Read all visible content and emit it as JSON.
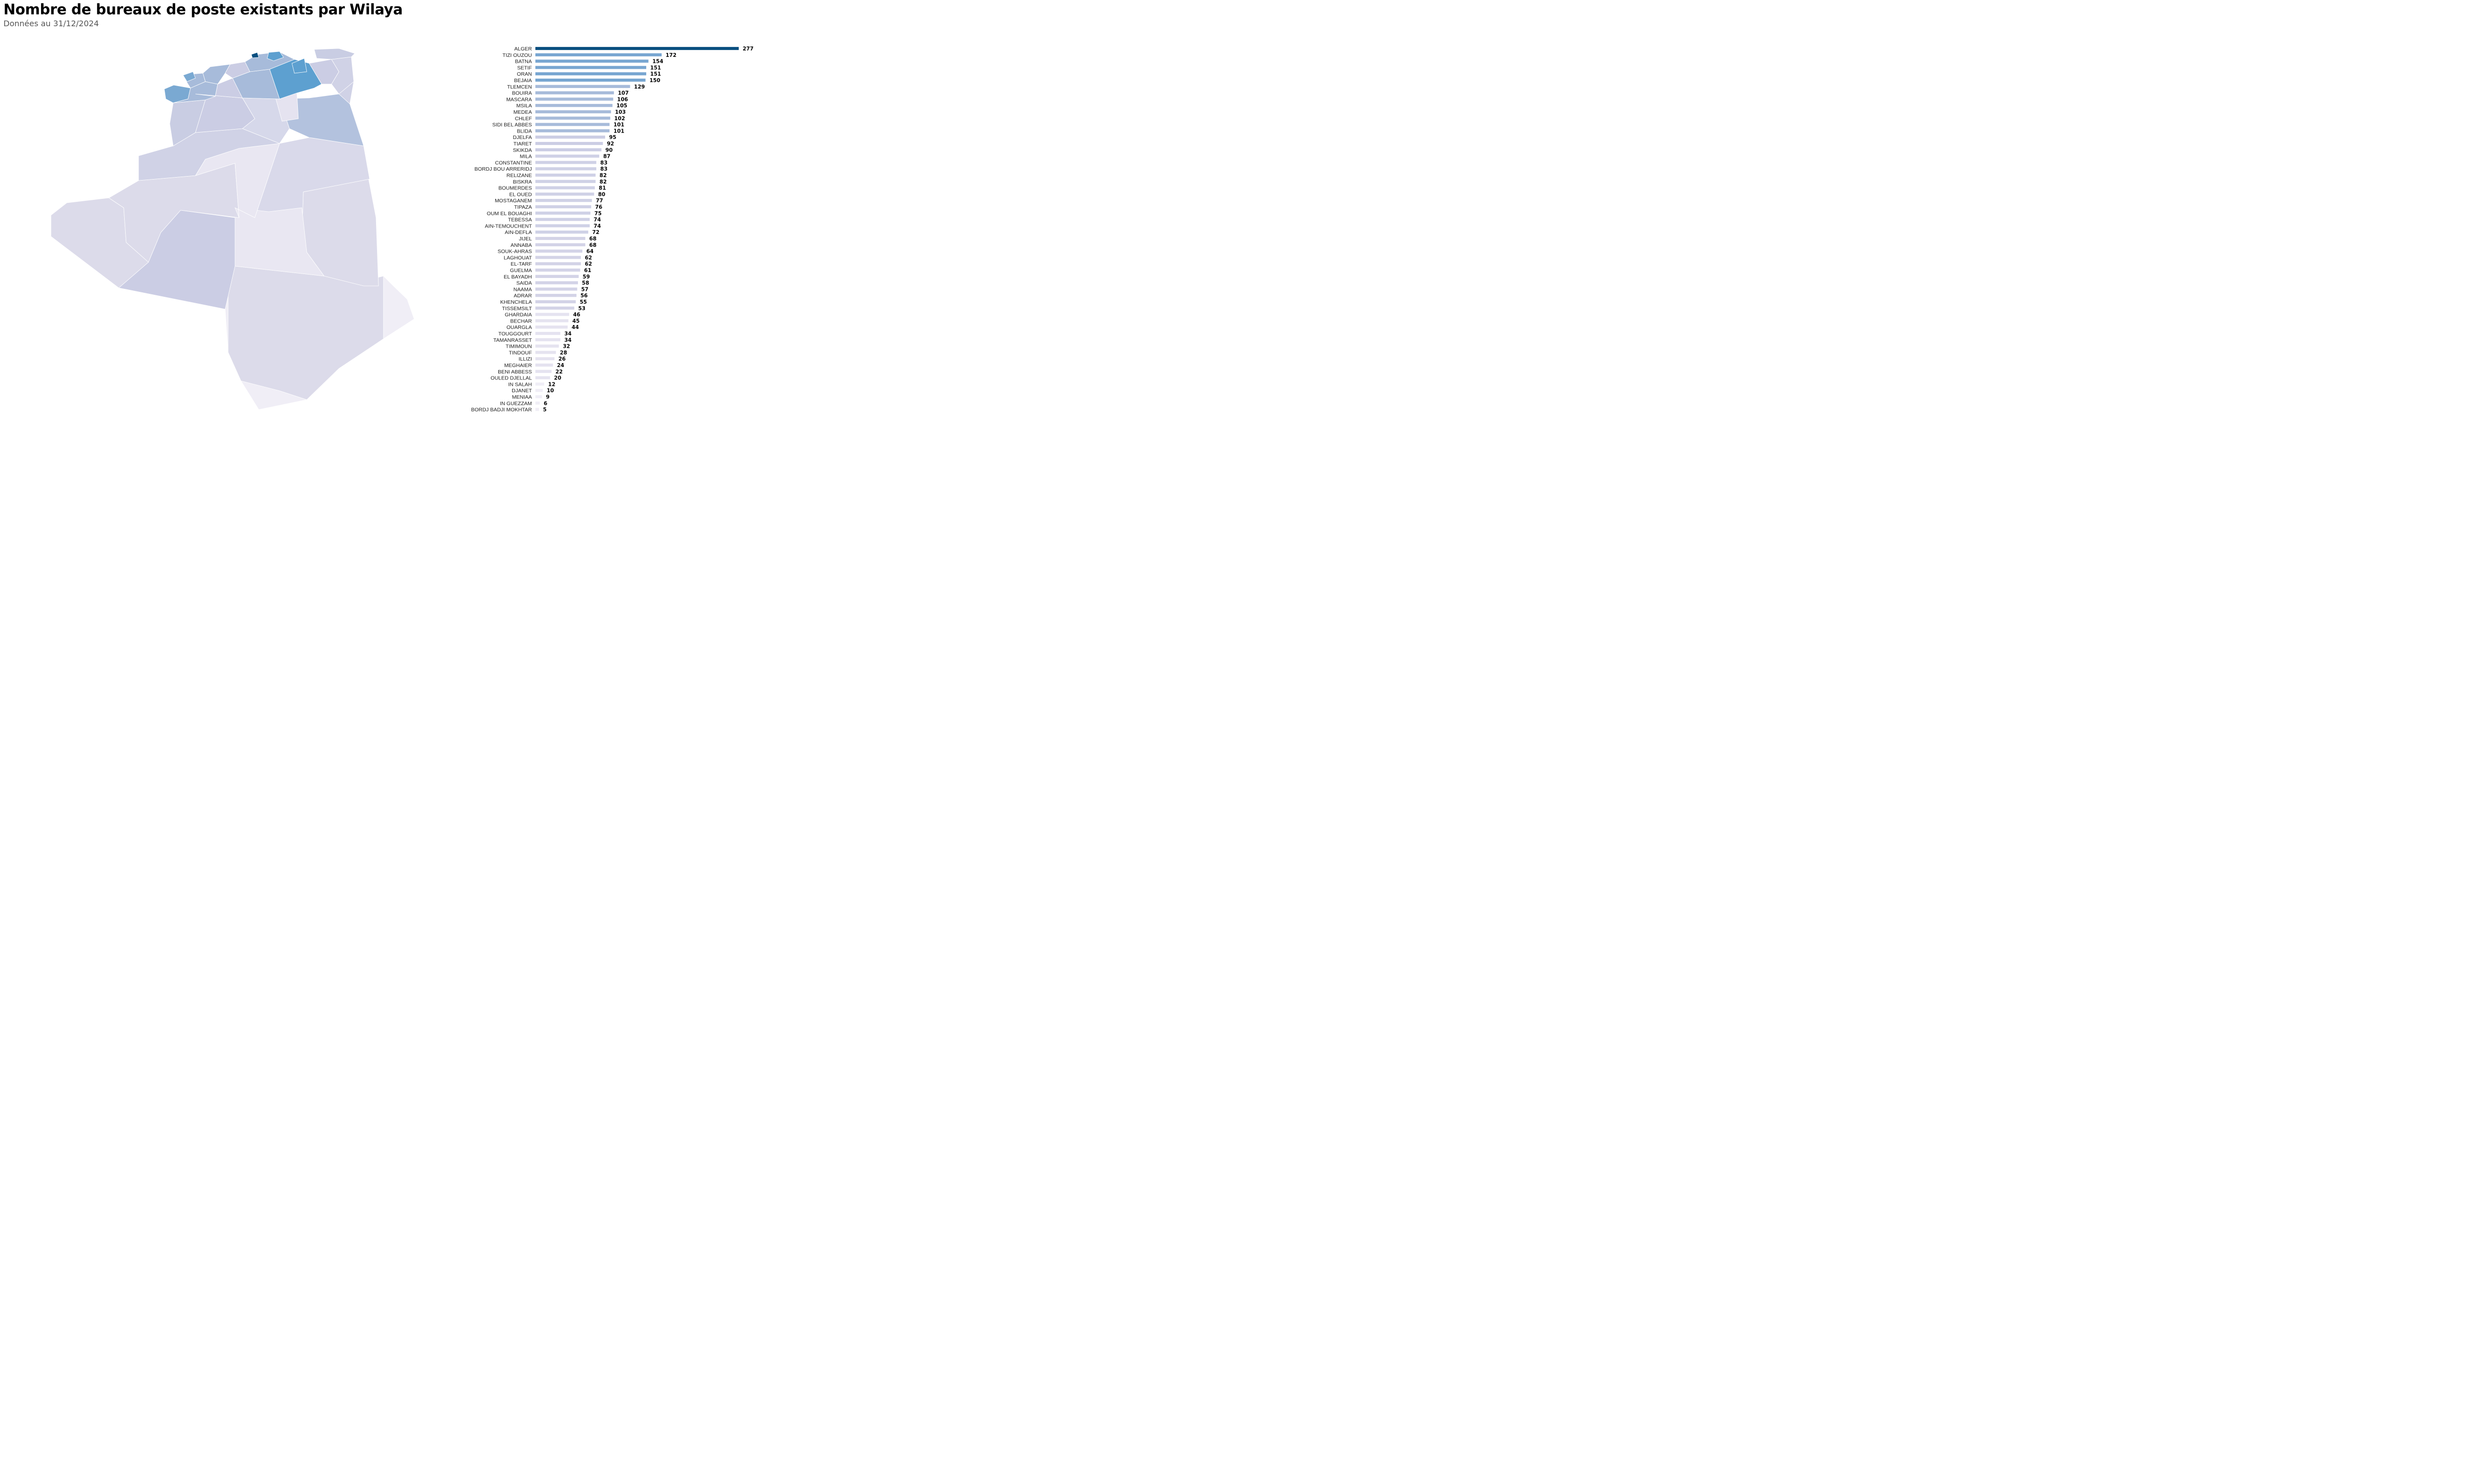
{
  "title": "Nombre de bureaux de poste existants par Wilaya",
  "subtitle": "Données au 31/12/2024",
  "colors": {
    "scale": [
      "#f0eef6",
      "#e5e3f0",
      "#d9d9ea",
      "#cbcde4",
      "#a7bbda",
      "#7aa9d2",
      "#5da0d0",
      "#0a4f80"
    ]
  },
  "chart_data": {
    "type": "bar",
    "orientation": "horizontal",
    "title": "Nombre de bureaux de poste existants par Wilaya",
    "subtitle": "Données au 31/12/2024",
    "categories": [
      "ALGER",
      "TIZI OUZOU",
      "BATNA",
      "SETIF",
      "ORAN",
      "BEJAIA",
      "TLEMCEN",
      "BOUIRA",
      "MASCARA",
      "MSILA",
      "MEDEA",
      "CHLEF",
      "SIDI BEL ABBES",
      "BLIDA",
      "DJELFA",
      "TIARET",
      "SKIKDA",
      "MILA",
      "CONSTANTINE",
      "BORDJ BOU ARRERIDJ",
      "RELIZANE",
      "BISKRA",
      "BOUMERDES",
      "EL OUED",
      "MOSTAGANEM",
      "TIPAZA",
      "OUM EL BOUAGHI",
      "TEBESSA",
      "AIN-TEMOUCHENT",
      "AIN-DEFLA",
      "JIJEL",
      "ANNABA",
      "SOUK-AHRAS",
      "LAGHOUAT",
      "EL-TARF",
      "GUELMA",
      "EL BAYADH",
      "SAIDA",
      "NAAMA",
      "ADRAR",
      "KHENCHELA",
      "TISSEMSILT",
      "GHARDAIA",
      "BECHAR",
      "OUARGLA",
      "TOUGGOURT",
      "TAMANRASSET",
      "TIMIMOUN",
      "TINDOUF",
      "ILLIZI",
      "MEGHAIER",
      "BENI ABBESS",
      "OULED DJELLAL",
      "IN SALAH",
      "DJANET",
      "MENIAA",
      "IN GUEZZAM",
      "BORDJ BADJI MOKHTAR"
    ],
    "values": [
      277,
      172,
      154,
      151,
      151,
      150,
      129,
      107,
      106,
      105,
      103,
      102,
      101,
      101,
      95,
      92,
      90,
      87,
      83,
      83,
      82,
      82,
      81,
      80,
      77,
      76,
      75,
      74,
      74,
      72,
      68,
      68,
      64,
      62,
      62,
      61,
      59,
      58,
      57,
      56,
      55,
      53,
      46,
      45,
      44,
      34,
      34,
      32,
      28,
      26,
      24,
      22,
      20,
      12,
      10,
      9,
      6,
      5
    ],
    "xlim": [
      0,
      277
    ],
    "grid": false,
    "legend": "none",
    "data_labels": true
  },
  "map": {
    "type": "choropleth",
    "region": "Algeria",
    "highlighted": [
      "ALGER",
      "TIZI OUZOU",
      "BATNA",
      "SETIF",
      "ORAN",
      "BEJAIA"
    ]
  }
}
